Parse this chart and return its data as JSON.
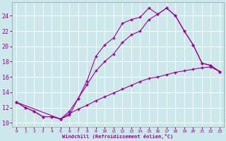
{
  "bg_color": "#cce8ea",
  "line_color": "#990099",
  "xlim": [
    -0.5,
    23.5
  ],
  "ylim": [
    9.5,
    25.8
  ],
  "yticks": [
    10,
    12,
    14,
    16,
    18,
    20,
    22,
    24
  ],
  "xticks": [
    0,
    1,
    2,
    3,
    4,
    5,
    6,
    7,
    8,
    9,
    10,
    11,
    12,
    13,
    14,
    15,
    16,
    17,
    18,
    19,
    20,
    21,
    22,
    23
  ],
  "xlabel": "Windchill (Refroidissement éolien,°C)",
  "curve1_x": [
    0,
    1,
    2,
    3,
    4,
    5,
    6,
    7,
    8,
    9,
    10,
    11,
    12,
    13,
    14,
    15,
    16,
    17,
    18,
    19,
    20,
    21,
    22,
    23
  ],
  "curve1_y": [
    12.7,
    12.0,
    11.5,
    10.8,
    10.8,
    10.5,
    11.0,
    13.2,
    15.5,
    18.7,
    20.2,
    21.1,
    23.0,
    23.5,
    23.8,
    25.0,
    24.2,
    25.0,
    24.0,
    22.0,
    20.2,
    17.8,
    17.5,
    16.7
  ],
  "curve2_x": [
    0,
    5,
    6,
    7,
    8,
    9,
    10,
    11,
    12,
    13,
    14,
    15,
    16,
    17,
    18,
    19,
    20,
    21,
    22,
    23
  ],
  "curve2_y": [
    12.7,
    10.5,
    11.5,
    13.2,
    15.0,
    16.8,
    18.0,
    19.0,
    20.5,
    21.5,
    22.0,
    23.5,
    24.2,
    25.0,
    24.0,
    22.0,
    20.2,
    17.8,
    17.5,
    16.7
  ],
  "curve3_x": [
    0,
    1,
    2,
    3,
    4,
    5,
    6,
    7,
    8,
    9,
    10,
    11,
    12,
    13,
    14,
    15,
    16,
    17,
    18,
    19,
    20,
    21,
    22,
    23
  ],
  "curve3_y": [
    12.7,
    12.0,
    11.5,
    10.8,
    10.8,
    10.5,
    11.2,
    11.8,
    12.3,
    12.9,
    13.4,
    13.9,
    14.4,
    14.9,
    15.4,
    15.8,
    16.0,
    16.3,
    16.6,
    16.8,
    17.0,
    17.2,
    17.3,
    16.7
  ]
}
